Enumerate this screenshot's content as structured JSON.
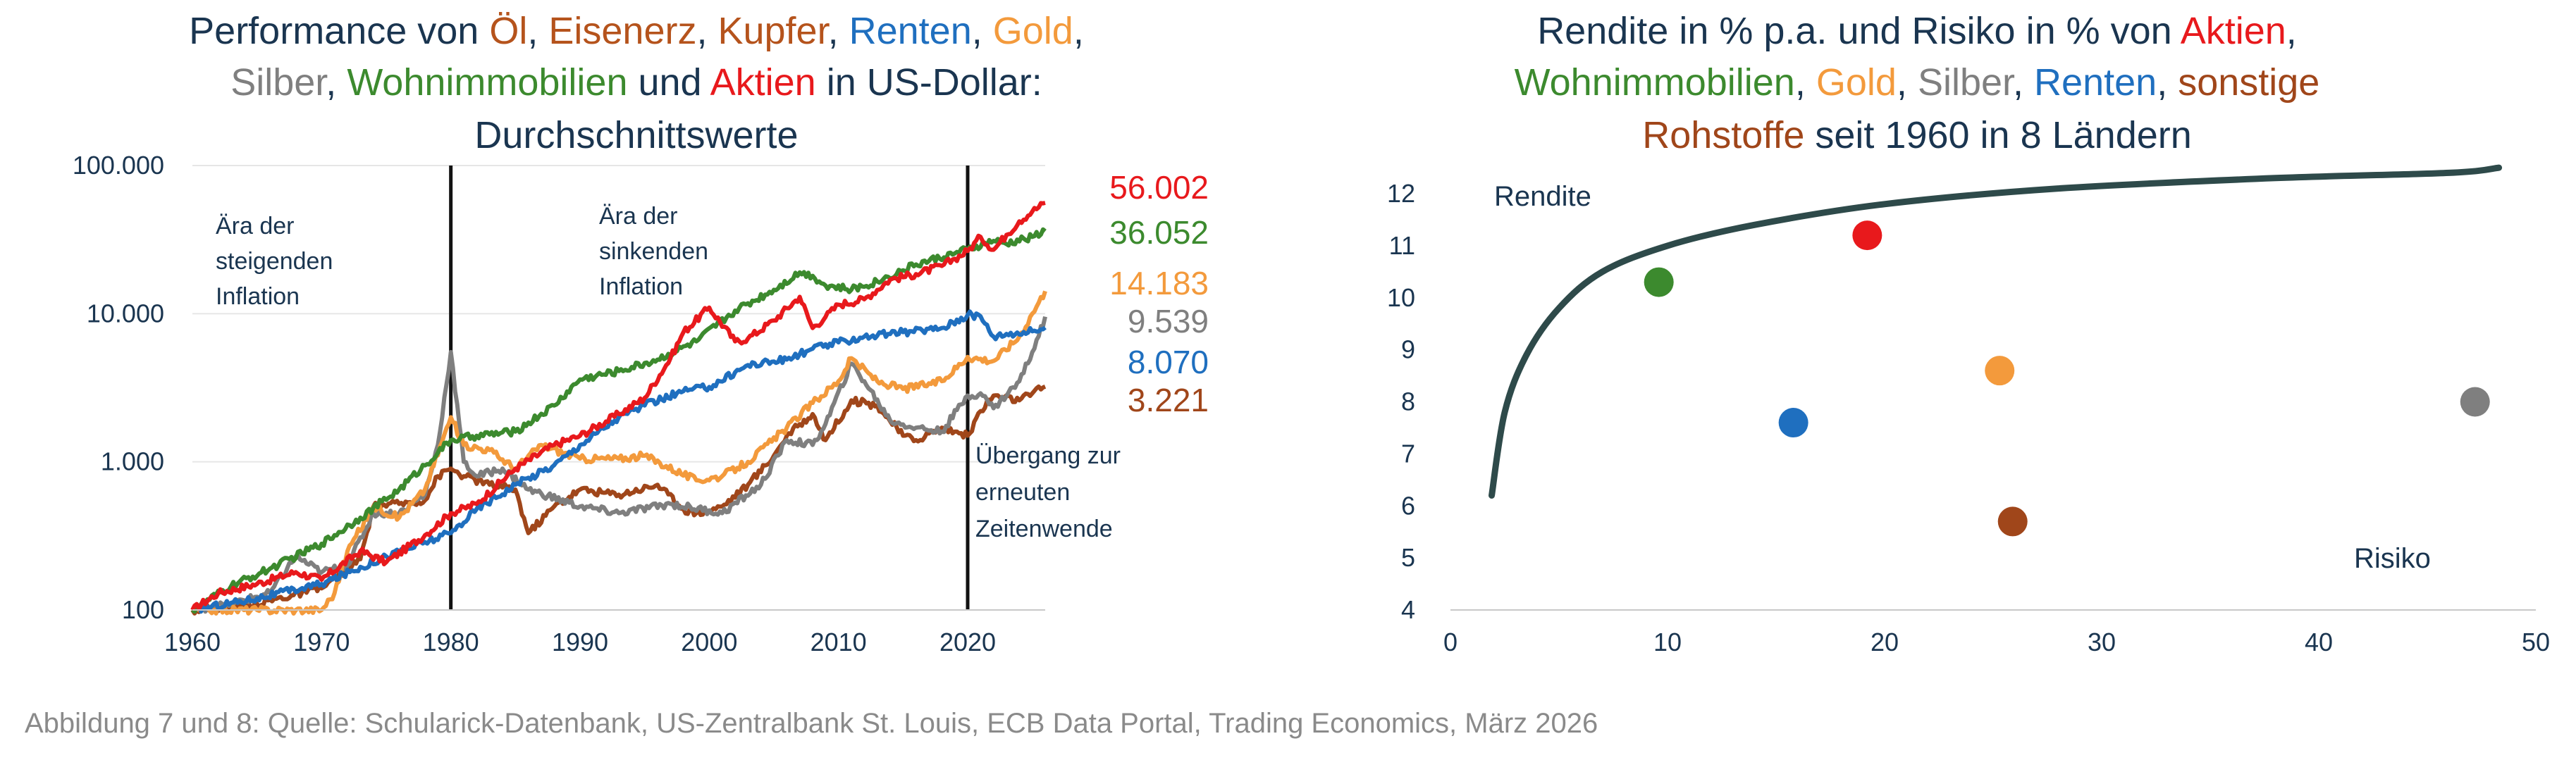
{
  "left_chart": {
    "title_line1": [
      {
        "text": "Performance von ",
        "color": "#1a3550"
      },
      {
        "text": "Öl",
        "color": "#b5531c"
      },
      {
        "text": ", ",
        "color": "#1a3550"
      },
      {
        "text": "Eisenerz",
        "color": "#b5531c"
      },
      {
        "text": ", ",
        "color": "#1a3550"
      },
      {
        "text": "Kupfer",
        "color": "#b5531c"
      },
      {
        "text": ", ",
        "color": "#1a3550"
      },
      {
        "text": "Renten",
        "color": "#1f6fbf"
      },
      {
        "text": ", ",
        "color": "#1a3550"
      },
      {
        "text": "Gold",
        "color": "#f39a3c"
      },
      {
        "text": ",",
        "color": "#1a3550"
      }
    ],
    "title_line2": [
      {
        "text": "Silber",
        "color": "#7f7f7f"
      },
      {
        "text": ", ",
        "color": "#1a3550"
      },
      {
        "text": "Wohnimmobilien",
        "color": "#3c8a2e"
      },
      {
        "text": " und ",
        "color": "#1a3550"
      },
      {
        "text": "Aktien",
        "color": "#e8191c"
      },
      {
        "text": " in US-Dollar:",
        "color": "#1a3550"
      }
    ],
    "title_line3": [
      {
        "text": "Durchschnittswerte",
        "color": "#1a3550"
      }
    ],
    "annotations": {
      "era1": [
        "Ära der",
        "steigenden",
        "Inflation"
      ],
      "era2": [
        "Ära der",
        "sinkenden",
        "Inflation"
      ],
      "era3": [
        "Übergang zur",
        "erneuten",
        "Zeitenwende"
      ]
    },
    "end_labels": [
      {
        "text": "56.002",
        "color": "#e8191c"
      },
      {
        "text": "36.052",
        "color": "#3c8a2e"
      },
      {
        "text": "14.183",
        "color": "#f39a3c"
      },
      {
        "text": "9.539",
        "color": "#7f7f7f"
      },
      {
        "text": "8.070",
        "color": "#1f6fbf"
      },
      {
        "text": "3.221",
        "color": "#a0461a"
      }
    ]
  },
  "right_chart": {
    "title_line1": [
      {
        "text": "Rendite in % p.a. und Risiko in % von ",
        "color": "#1a3550"
      },
      {
        "text": "Aktien",
        "color": "#e8191c"
      },
      {
        "text": ",",
        "color": "#1a3550"
      }
    ],
    "title_line2": [
      {
        "text": "Wohnimmobilien",
        "color": "#3c8a2e"
      },
      {
        "text": ", ",
        "color": "#1a3550"
      },
      {
        "text": "Gold",
        "color": "#f39a3c"
      },
      {
        "text": ", ",
        "color": "#1a3550"
      },
      {
        "text": "Silber",
        "color": "#7f7f7f"
      },
      {
        "text": ", ",
        "color": "#1a3550"
      },
      {
        "text": "Renten",
        "color": "#1f6fbf"
      },
      {
        "text": ", ",
        "color": "#1a3550"
      },
      {
        "text": "sonstige",
        "color": "#a0461a"
      }
    ],
    "title_line3": [
      {
        "text": "Rohstoffe",
        "color": "#a0461a"
      },
      {
        "text": " seit 1960 in 8 Ländern",
        "color": "#1a3550"
      }
    ],
    "ylabel": "Rendite",
    "xlabel": "Risiko"
  },
  "caption": "Abbildung 7 und 8: Quelle: Schularick-Datenbank, US-Zentralbank St. Louis, ECB Data Portal, Trading Economics, März 2026",
  "chart_data": [
    {
      "type": "line",
      "yscale": "log",
      "title": "Performance von Öl, Eisenerz, Kupfer, Renten, Gold, Silber, Wohnimmobilien und Aktien in US-Dollar: Durchschnittswerte",
      "xlim": [
        1960,
        2026
      ],
      "ylim": [
        100,
        100000
      ],
      "x_ticks": [
        1960,
        1970,
        1980,
        1990,
        2000,
        2010,
        2020
      ],
      "y_ticks": [
        100,
        1000,
        10000,
        100000
      ],
      "y_tick_labels": [
        "100",
        "1.000",
        "10.000",
        "100.000"
      ],
      "vertical_lines": [
        1980,
        2020
      ],
      "series": [
        {
          "name": "Aktien",
          "color": "#e8191c",
          "x": [
            1960,
            1962,
            1965,
            1968,
            1970,
            1973,
            1975,
            1978,
            1980,
            1982,
            1985,
            1988,
            1990,
            1993,
            1995,
            1997,
            1998,
            2000,
            2002,
            2003,
            2005,
            2007,
            2008,
            2009,
            2010,
            2012,
            2014,
            2016,
            2018,
            2019,
            2020,
            2021,
            2022,
            2023,
            2024,
            2025,
            2026
          ],
          "y": [
            100,
            130,
            150,
            180,
            160,
            250,
            210,
            320,
            450,
            520,
            900,
            1300,
            1500,
            2100,
            2700,
            5000,
            7500,
            11000,
            6500,
            6800,
            9000,
            13000,
            8000,
            9500,
            11500,
            12500,
            17000,
            18500,
            21000,
            23500,
            26500,
            33000,
            27000,
            34000,
            42000,
            49000,
            56002
          ]
        },
        {
          "name": "Wohnimmobilien",
          "color": "#3c8a2e",
          "x": [
            1960,
            1963,
            1966,
            1970,
            1973,
            1976,
            1979,
            1980,
            1982,
            1985,
            1988,
            1990,
            1993,
            1996,
            1999,
            2002,
            2005,
            2007,
            2008,
            2009,
            2011,
            2013,
            2016,
            2019,
            2020,
            2022,
            2023,
            2025,
            2026
          ],
          "y": [
            100,
            145,
            190,
            280,
            420,
            650,
            1150,
            1400,
            1500,
            1600,
            2400,
            3600,
            4100,
            4900,
            6500,
            10500,
            14500,
            19000,
            18000,
            15500,
            14500,
            16500,
            21500,
            25500,
            27000,
            31000,
            29500,
            33000,
            36052
          ]
        },
        {
          "name": "Gold",
          "color": "#f39a3c",
          "x": [
            1960,
            1965,
            1968,
            1970,
            1971,
            1972,
            1974,
            1976,
            1978,
            1980,
            1981,
            1983,
            1985,
            1987,
            1990,
            1993,
            1995,
            1999,
            2001,
            2003,
            2006,
            2008,
            2010,
            2011,
            2013,
            2015,
            2018,
            2020,
            2022,
            2024,
            2025,
            2026
          ],
          "y": [
            100,
            100,
            100,
            100,
            130,
            250,
            500,
            420,
            650,
            2000,
            1300,
            1200,
            900,
            1300,
            1050,
            1050,
            1100,
            750,
            800,
            1000,
            1700,
            2500,
            3500,
            5000,
            3500,
            3100,
            3500,
            5100,
            4800,
            7000,
            10000,
            14183
          ]
        },
        {
          "name": "Silber",
          "color": "#7f7f7f",
          "x": [
            1960,
            1963,
            1966,
            1968,
            1970,
            1972,
            1974,
            1976,
            1978,
            1979,
            1980,
            1981,
            1982,
            1984,
            1986,
            1990,
            1993,
            1997,
            2001,
            2004,
            2006,
            2008,
            2009,
            2011,
            2012,
            2014,
            2016,
            2018,
            2020,
            2021,
            2022,
            2024,
            2025,
            2026
          ],
          "y": [
            100,
            110,
            130,
            230,
            180,
            200,
            450,
            450,
            600,
            1300,
            5500,
            1000,
            800,
            900,
            650,
            500,
            450,
            520,
            450,
            700,
            1400,
            1300,
            1800,
            4600,
            3500,
            1900,
            1700,
            1600,
            2800,
            2900,
            2300,
            3500,
            5500,
            9539
          ]
        },
        {
          "name": "Renten",
          "color": "#1f6fbf",
          "x": [
            1960,
            1965,
            1970,
            1975,
            1980,
            1982,
            1985,
            1988,
            1990,
            1993,
            1995,
            1998,
            2000,
            2003,
            2006,
            2008,
            2010,
            2012,
            2015,
            2018,
            2020,
            2021,
            2022,
            2023,
            2025,
            2026
          ],
          "y": [
            100,
            120,
            150,
            230,
            330,
            480,
            700,
            950,
            1300,
            2000,
            2400,
            3000,
            3200,
            4500,
            4900,
            5800,
            6400,
            7000,
            7500,
            8000,
            9800,
            9600,
            7000,
            7300,
            7600,
            8070
          ]
        },
        {
          "name": "Öl, Eisenerz, Kupfer",
          "color": "#a0461a",
          "x": [
            1960,
            1965,
            1970,
            1973,
            1974,
            1976,
            1978,
            1979,
            1980,
            1981,
            1983,
            1985,
            1986,
            1988,
            1990,
            1993,
            1996,
            1998,
            1999,
            2001,
            2003,
            2005,
            2006,
            2008,
            2009,
            2011,
            2013,
            2015,
            2016,
            2018,
            2019,
            2020,
            2021,
            2022,
            2024,
            2025,
            2026
          ],
          "y": [
            100,
            110,
            140,
            220,
            500,
            520,
            550,
            800,
            900,
            800,
            700,
            650,
            330,
            500,
            650,
            600,
            700,
            480,
            450,
            500,
            700,
            1100,
            1500,
            2100,
            1400,
            2600,
            2400,
            1500,
            1400,
            1700,
            1600,
            1500,
            2200,
            2800,
            2600,
            2900,
            3221
          ]
        }
      ],
      "end_values": [
        56002,
        36052,
        14183,
        9539,
        8070,
        3221
      ]
    },
    {
      "type": "scatter",
      "title": "Rendite in % p.a. und Risiko in % von Aktien, Wohnimmobilien, Gold, Silber, Renten, sonstige Rohstoffe seit 1960 in 8 Ländern",
      "xlabel": "Risiko",
      "ylabel": "Rendite",
      "xlim": [
        0,
        50
      ],
      "ylim": [
        4,
        12
      ],
      "x_ticks": [
        0,
        10,
        20,
        30,
        40,
        50
      ],
      "y_ticks": [
        4,
        5,
        6,
        7,
        8,
        9,
        10,
        11,
        12
      ],
      "points": [
        {
          "name": "Aktien",
          "x": 19.2,
          "y": 11.2,
          "color": "#e8191c"
        },
        {
          "name": "Wohnimmobilien",
          "x": 9.6,
          "y": 10.3,
          "color": "#3c8a2e"
        },
        {
          "name": "Gold",
          "x": 25.3,
          "y": 8.6,
          "color": "#f39a3c"
        },
        {
          "name": "Silber",
          "x": 47.2,
          "y": 8.0,
          "color": "#7f7f7f"
        },
        {
          "name": "Renten",
          "x": 15.8,
          "y": 7.6,
          "color": "#1f6fbf"
        },
        {
          "name": "sonstige Rohstoffe",
          "x": 25.9,
          "y": 5.7,
          "color": "#a0461a"
        }
      ],
      "curve": {
        "color": "#2e4a4a",
        "x": [
          1.9,
          2.5,
          3.5,
          5,
          7,
          10,
          14,
          20,
          28,
          38,
          46,
          48.3
        ],
        "y": [
          6.2,
          7.8,
          8.9,
          9.8,
          10.5,
          11.0,
          11.4,
          11.8,
          12.1,
          12.3,
          12.4,
          12.5
        ]
      }
    }
  ]
}
